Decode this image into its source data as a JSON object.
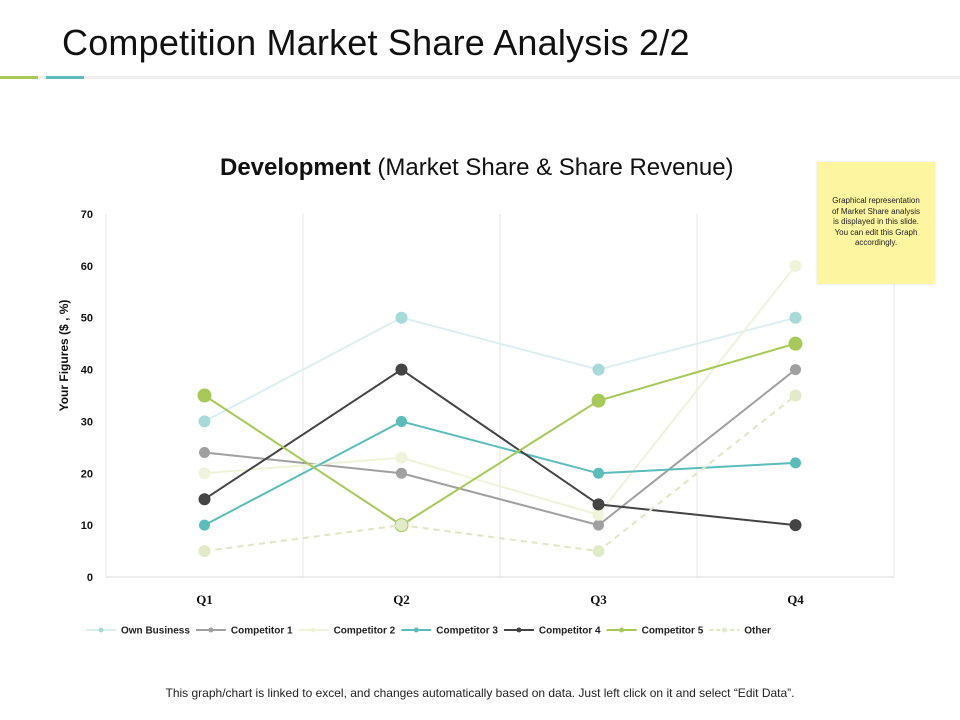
{
  "slide": {
    "title": "Competition Market Share Analysis 2/2",
    "note": "Graphical representation of Market Share analysis is displayed in this slide. You can edit this Graph accordingly.",
    "footer": "This graph/chart is linked to excel, and changes automatically based on data. Just left click on it and select “Edit Data”."
  },
  "chart_data": {
    "type": "line",
    "title_bold": "Development",
    "title_rest": " (Market Share & Share Revenue)",
    "ylabel": "Your Figures ($ , %)",
    "xlabel": "",
    "ylim": [
      0,
      70
    ],
    "yticks": [
      0,
      10,
      20,
      30,
      40,
      50,
      60,
      70
    ],
    "categories": [
      "Q1",
      "Q2",
      "Q3",
      "Q4"
    ],
    "grid": "vertical",
    "legend_position": "bottom",
    "series": [
      {
        "name": "Own Business",
        "values": [
          30,
          50,
          40,
          50
        ],
        "color": "#a8dada",
        "line_color": "#dceff0",
        "dashed": false,
        "marker": 12
      },
      {
        "name": "Competitor 1",
        "values": [
          24,
          20,
          10,
          40
        ],
        "color": "#a0a0a0",
        "line_color": "#a0a0a0",
        "dashed": false,
        "marker": 11
      },
      {
        "name": "Competitor 2",
        "values": [
          20,
          23,
          12,
          60
        ],
        "color": "#eef3da",
        "line_color": "#eef3da",
        "dashed": false,
        "marker": 12
      },
      {
        "name": "Competitor 3",
        "values": [
          10,
          30,
          20,
          22
        ],
        "color": "#5bbcba",
        "line_color": "#5bbcba",
        "dashed": false,
        "marker": 11
      },
      {
        "name": "Competitor 4",
        "values": [
          15,
          40,
          14,
          10
        ],
        "color": "#444444",
        "line_color": "#444444",
        "dashed": false,
        "marker": 12
      },
      {
        "name": "Competitor 5",
        "values": [
          35,
          10,
          34,
          45
        ],
        "color": "#a6c95a",
        "line_color": "#a6c95a",
        "dashed": false,
        "marker": 14
      },
      {
        "name": "Other",
        "values": [
          5,
          10,
          5,
          35
        ],
        "color": "#e2ebc8",
        "line_color": "#dfe6c2",
        "dashed": true,
        "marker": 12
      }
    ]
  }
}
